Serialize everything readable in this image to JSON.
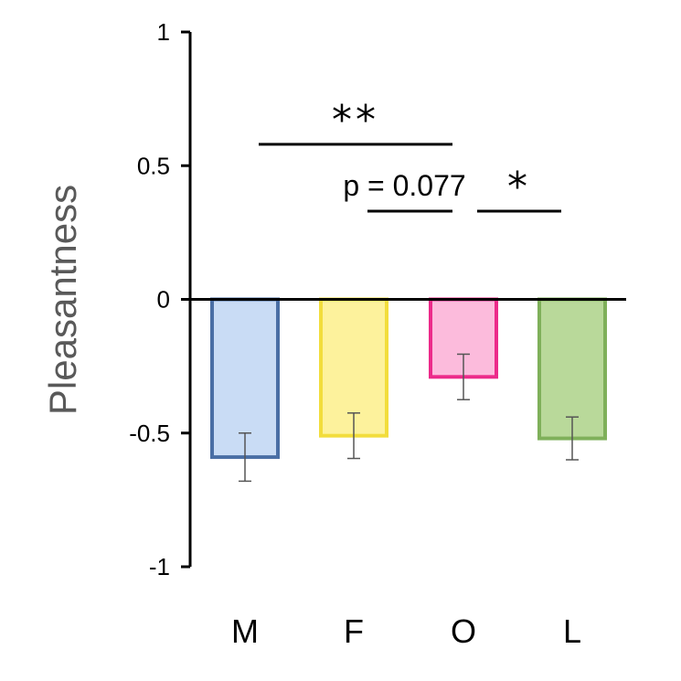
{
  "chart_data": {
    "type": "bar",
    "ylabel": "Pleasantness",
    "xlabel": "",
    "ylim": [
      -1,
      1
    ],
    "yticks": [
      {
        "value": 1,
        "label": "1"
      },
      {
        "value": 0.5,
        "label": "0.5"
      },
      {
        "value": 0,
        "label": "0"
      },
      {
        "value": -0.5,
        "label": "-0.5"
      },
      {
        "value": -1,
        "label": "-1"
      }
    ],
    "categories": [
      "M",
      "F",
      "O",
      "L"
    ],
    "values": [
      -0.59,
      -0.51,
      -0.29,
      -0.52
    ],
    "errors": [
      0.09,
      0.085,
      0.085,
      0.08
    ],
    "bar_fills": [
      "#c9dcf5",
      "#fdf29c",
      "#fcbbdc",
      "#b9d99a"
    ],
    "bar_strokes": [
      "#4a6fa5",
      "#f2dd3c",
      "#ec2a8a",
      "#7fb05a"
    ],
    "significance": [
      {
        "from": "M",
        "to": "O",
        "label": "**",
        "y": 0.58
      },
      {
        "from": "F",
        "to": "O",
        "label": "p = 0.077",
        "y": 0.33
      },
      {
        "from": "O",
        "to": "L",
        "label": "*",
        "y": 0.33
      }
    ]
  }
}
